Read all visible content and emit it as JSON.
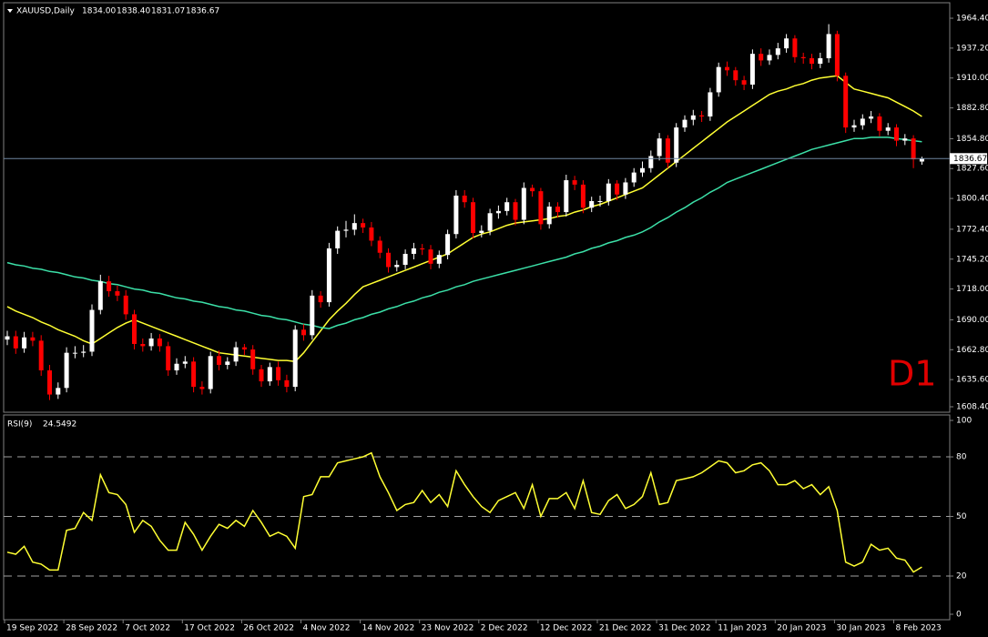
{
  "chart_data": [
    {
      "type": "candlestick",
      "title": "XAUUSD,Daily",
      "ohlc_labels": [
        "1834.00",
        "1838.40",
        "1831.07",
        "1836.67"
      ],
      "annotation": "D1",
      "last_price_label": "1836.67",
      "up_color": "#ffffff",
      "down_color": "#ff0000",
      "categories": [
        "19 Sep 2022",
        null,
        null,
        null,
        null,
        null,
        null,
        "28 Sep 2022",
        null,
        null,
        null,
        null,
        null,
        null,
        "7 Oct 2022",
        null,
        null,
        null,
        null,
        null,
        null,
        "17 Oct 2022",
        null,
        null,
        null,
        null,
        null,
        null,
        "26 Oct 2022",
        null,
        null,
        null,
        null,
        null,
        null,
        "4 Nov 2022",
        null,
        null,
        null,
        null,
        null,
        null,
        "14 Nov 2022",
        null,
        null,
        null,
        null,
        null,
        null,
        "23 Nov 2022",
        null,
        null,
        null,
        null,
        null,
        null,
        "2 Dec 2022",
        null,
        null,
        null,
        null,
        null,
        null,
        "12 Dec 2022",
        null,
        null,
        null,
        null,
        null,
        null,
        "21 Dec 2022",
        null,
        null,
        null,
        null,
        null,
        null,
        "31 Dec 2022",
        null,
        null,
        null,
        null,
        null,
        null,
        "11 Jan 2023",
        null,
        null,
        null,
        null,
        null,
        null,
        "20 Jan 2023",
        null,
        null,
        null,
        null,
        null,
        null,
        "30 Jan 2023",
        null,
        null,
        null,
        null,
        null,
        null,
        "8 Feb 2023",
        null,
        null,
        null
      ],
      "open": [
        1672,
        1675,
        1664,
        1674,
        1671,
        1644,
        1622,
        1628,
        1660,
        1660,
        1661,
        1699,
        1725,
        1716,
        1712,
        1695,
        1668,
        1666,
        1673,
        1666,
        1644,
        1650,
        1652,
        1629,
        1627,
        1657,
        1649,
        1652,
        1665,
        1663,
        1645,
        1634,
        1647,
        1635,
        1629,
        1681,
        1676,
        1712,
        1706,
        1755,
        1771,
        1772,
        1778,
        1774,
        1762,
        1751,
        1738,
        1740,
        1750,
        1755,
        1754,
        1741,
        1749,
        1768,
        1803,
        1797,
        1769,
        1771,
        1787,
        1789,
        1797,
        1781,
        1810,
        1807,
        1777,
        1793,
        1788,
        1817,
        1813,
        1792,
        1798,
        1798,
        1814,
        1804,
        1815,
        1824,
        1828,
        1839,
        1855,
        1833,
        1865,
        1872,
        1876,
        1875,
        1897,
        1920,
        1917,
        1908,
        1904,
        1932,
        1926,
        1931,
        1937,
        1946,
        1929,
        1928,
        1923,
        1928,
        1950,
        1912,
        1865,
        1867,
        1873,
        1875,
        1862,
        1865,
        1853,
        1855,
        1834
      ],
      "high": [
        1680,
        1680,
        1679,
        1679,
        1676,
        1649,
        1633,
        1665,
        1666,
        1667,
        1704,
        1731,
        1730,
        1721,
        1717,
        1699,
        1673,
        1678,
        1677,
        1670,
        1655,
        1657,
        1656,
        1634,
        1661,
        1662,
        1656,
        1670,
        1668,
        1667,
        1649,
        1651,
        1652,
        1640,
        1685,
        1686,
        1717,
        1716,
        1760,
        1775,
        1780,
        1786,
        1782,
        1779,
        1766,
        1755,
        1744,
        1754,
        1760,
        1759,
        1758,
        1753,
        1772,
        1808,
        1808,
        1801,
        1776,
        1791,
        1794,
        1801,
        1800,
        1815,
        1813,
        1810,
        1797,
        1797,
        1822,
        1821,
        1817,
        1802,
        1803,
        1818,
        1817,
        1819,
        1828,
        1834,
        1844,
        1860,
        1858,
        1869,
        1876,
        1881,
        1880,
        1901,
        1924,
        1925,
        1920,
        1912,
        1936,
        1937,
        1936,
        1942,
        1950,
        1949,
        1933,
        1932,
        1933,
        1959,
        1953,
        1915,
        1872,
        1877,
        1880,
        1878,
        1869,
        1868,
        1859,
        1858,
        1838.4
      ],
      "low": [
        1667,
        1659,
        1660,
        1666,
        1639,
        1617,
        1618,
        1624,
        1655,
        1656,
        1657,
        1695,
        1711,
        1707,
        1690,
        1663,
        1661,
        1662,
        1661,
        1639,
        1640,
        1646,
        1624,
        1622,
        1623,
        1644,
        1645,
        1648,
        1658,
        1640,
        1629,
        1630,
        1630,
        1624,
        1625,
        1671,
        1672,
        1701,
        1702,
        1750,
        1765,
        1767,
        1769,
        1757,
        1746,
        1733,
        1734,
        1736,
        1745,
        1749,
        1736,
        1737,
        1745,
        1764,
        1792,
        1764,
        1765,
        1767,
        1782,
        1785,
        1776,
        1777,
        1802,
        1772,
        1773,
        1783,
        1784,
        1808,
        1787,
        1788,
        1793,
        1794,
        1799,
        1800,
        1811,
        1820,
        1824,
        1835,
        1828,
        1829,
        1861,
        1867,
        1870,
        1871,
        1893,
        1912,
        1903,
        1899,
        1900,
        1921,
        1922,
        1927,
        1933,
        1924,
        1923,
        1918,
        1919,
        1924,
        1907,
        1860,
        1861,
        1863,
        1869,
        1857,
        1858,
        1848,
        1849,
        1828,
        1831.07
      ],
      "close": [
        1675,
        1664,
        1674,
        1671,
        1644,
        1622,
        1628,
        1660,
        1660,
        1661,
        1699,
        1725,
        1716,
        1712,
        1695,
        1668,
        1666,
        1673,
        1666,
        1644,
        1650,
        1652,
        1629,
        1627,
        1657,
        1649,
        1652,
        1665,
        1663,
        1645,
        1634,
        1647,
        1635,
        1629,
        1681,
        1676,
        1712,
        1706,
        1755,
        1771,
        1772,
        1778,
        1774,
        1762,
        1751,
        1738,
        1740,
        1750,
        1755,
        1754,
        1741,
        1749,
        1768,
        1803,
        1797,
        1769,
        1771,
        1787,
        1789,
        1797,
        1781,
        1810,
        1807,
        1777,
        1793,
        1788,
        1817,
        1813,
        1792,
        1798,
        1798,
        1814,
        1804,
        1815,
        1824,
        1828,
        1839,
        1855,
        1833,
        1865,
        1872,
        1876,
        1875,
        1897,
        1920,
        1917,
        1908,
        1904,
        1932,
        1926,
        1931,
        1937,
        1946,
        1929,
        1928,
        1923,
        1928,
        1950,
        1912,
        1865,
        1867,
        1873,
        1875,
        1862,
        1865,
        1853,
        1855,
        1836,
        1836.67
      ],
      "series": [
        {
          "color": "#ffff33",
          "values": [
            1702,
            1698,
            1695,
            1692,
            1688,
            1685,
            1681,
            1678,
            1675,
            1671,
            1668,
            1673,
            1678,
            1683,
            1687,
            1690,
            1687,
            1684,
            1681,
            1678,
            1675,
            1672,
            1669,
            1666,
            1663,
            1660,
            1659,
            1658,
            1657,
            1656,
            1655,
            1654,
            1653,
            1653,
            1652,
            1660,
            1670,
            1680,
            1690,
            1698,
            1705,
            1713,
            1720,
            1723,
            1726,
            1729,
            1732,
            1735,
            1738,
            1741,
            1744,
            1747,
            1750,
            1755,
            1760,
            1765,
            1768,
            1770,
            1773,
            1776,
            1778,
            1779,
            1780,
            1781,
            1782,
            1784,
            1785,
            1788,
            1790,
            1793,
            1795,
            1798,
            1801,
            1804,
            1807,
            1810,
            1816,
            1822,
            1828,
            1834,
            1840,
            1846,
            1852,
            1858,
            1864,
            1870,
            1875,
            1880,
            1885,
            1890,
            1895,
            1898,
            1900,
            1903,
            1905,
            1908,
            1910,
            1911,
            1912,
            1906,
            1900,
            1898,
            1896,
            1894,
            1892,
            1888,
            1884,
            1880,
            1875
          ]
        },
        {
          "color": "#3ce0a8",
          "values": [
            1742,
            1740,
            1739,
            1737,
            1736,
            1734,
            1733,
            1731,
            1729,
            1728,
            1726,
            1725,
            1723,
            1722,
            1720,
            1718,
            1717,
            1715,
            1714,
            1712,
            1710,
            1709,
            1707,
            1706,
            1704,
            1702,
            1701,
            1699,
            1698,
            1696,
            1694,
            1693,
            1691,
            1690,
            1688,
            1686,
            1685,
            1683,
            1682,
            1685,
            1687,
            1690,
            1692,
            1695,
            1697,
            1700,
            1702,
            1705,
            1707,
            1710,
            1712,
            1715,
            1717,
            1720,
            1722,
            1725,
            1727,
            1729,
            1731,
            1733,
            1735,
            1737,
            1739,
            1741,
            1743,
            1745,
            1747,
            1750,
            1752,
            1755,
            1757,
            1760,
            1762,
            1765,
            1767,
            1770,
            1774,
            1779,
            1783,
            1788,
            1792,
            1797,
            1801,
            1806,
            1810,
            1815,
            1818,
            1821,
            1824,
            1827,
            1830,
            1833,
            1836,
            1839,
            1842,
            1845,
            1847,
            1849,
            1851,
            1853,
            1855,
            1855,
            1856,
            1856,
            1856,
            1855,
            1854,
            1853,
            1852
          ]
        }
      ],
      "ylim": [
        1605.9,
        1978.5
      ],
      "yticks": [
        {
          "value": 1964.4,
          "label": "1964.40"
        },
        {
          "value": 1937.2,
          "label": "1937.20"
        },
        {
          "value": 1910,
          "label": "1910.00"
        },
        {
          "value": 1882.8,
          "label": "1882.80"
        },
        {
          "value": 1854.8,
          "label": "1854.80"
        },
        {
          "value": 1827.6,
          "label": "1827.60"
        },
        {
          "value": 1800.4,
          "label": "1800.40"
        },
        {
          "value": 1772.4,
          "label": "1772.40"
        },
        {
          "value": 1745.2,
          "label": "1745.20"
        },
        {
          "value": 1718,
          "label": "1718.00"
        },
        {
          "value": 1690,
          "label": "1690.00"
        },
        {
          "value": 1662.8,
          "label": "1662.80"
        },
        {
          "value": 1635.6,
          "label": "1635.60"
        },
        {
          "value": 1608.4,
          "label": "1608.40"
        }
      ],
      "grid": false
    },
    {
      "type": "line",
      "title": "RSI(9)",
      "color": "#ffff33",
      "values": [
        32,
        31,
        35,
        27,
        26,
        23,
        23,
        43,
        44,
        52,
        48,
        71,
        62,
        61,
        56,
        42,
        48,
        45,
        38,
        33,
        33,
        47,
        41,
        33,
        40,
        46,
        44,
        48,
        45,
        53,
        47,
        40,
        42,
        40,
        34,
        60,
        61,
        70,
        70,
        77,
        78,
        79,
        80,
        82,
        70,
        62,
        53,
        56,
        57,
        63,
        57,
        61,
        55,
        73,
        66,
        60,
        55,
        52,
        58,
        60,
        62,
        54,
        66,
        50,
        59,
        59,
        62,
        54,
        68,
        52,
        51,
        58,
        61,
        54,
        56,
        60,
        72,
        56,
        57,
        68,
        69,
        70,
        72,
        75,
        78,
        77,
        72,
        73,
        76,
        77,
        73,
        66,
        66,
        68,
        64,
        66,
        61,
        65,
        53,
        27,
        25,
        27,
        36,
        33,
        34,
        29,
        28,
        22,
        24.5492
      ],
      "ylim": [
        -2,
        101.1
      ],
      "yticks": [
        100,
        80,
        50,
        20,
        0
      ],
      "levels": [
        80,
        50,
        20
      ]
    }
  ]
}
